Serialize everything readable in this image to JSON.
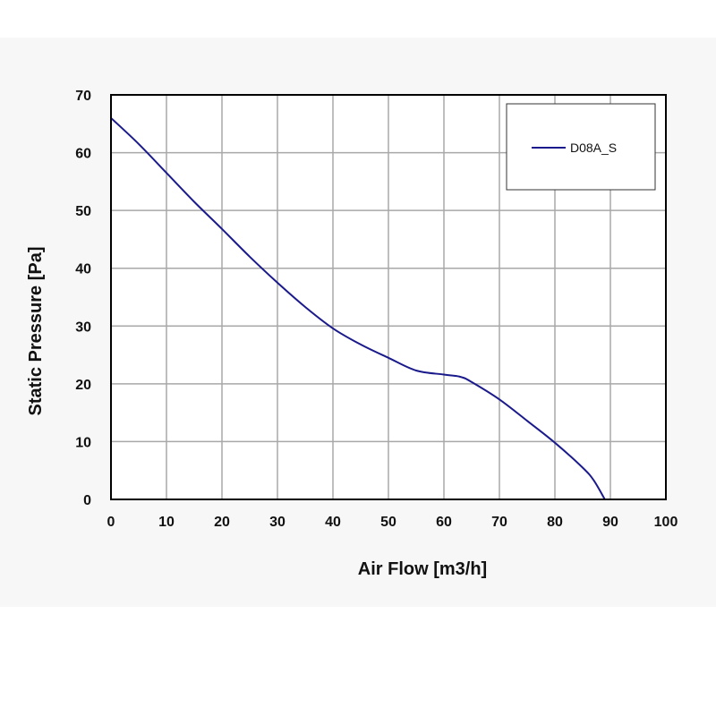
{
  "chart_data": {
    "type": "line",
    "title": "",
    "xlabel": "Air Flow [m3/h]",
    "ylabel": "Static Pressure [Pa]",
    "xlim": [
      0,
      100
    ],
    "ylim": [
      0,
      70
    ],
    "xticks": [
      0,
      10,
      20,
      30,
      40,
      50,
      60,
      70,
      80,
      90,
      100
    ],
    "yticks": [
      0,
      10,
      20,
      30,
      40,
      50,
      60,
      70
    ],
    "grid": true,
    "legend_position": "top-right",
    "series": [
      {
        "name": "D08A_S",
        "color": "#1a1a8c",
        "x": [
          0,
          5,
          10,
          15,
          20,
          25,
          30,
          35,
          40,
          45,
          50,
          55,
          60,
          63,
          65,
          70,
          75,
          80,
          85,
          87,
          89
        ],
        "y": [
          66,
          61.5,
          56.5,
          51.5,
          46.8,
          42,
          37.5,
          33.3,
          29.6,
          26.8,
          24.5,
          22.3,
          21.6,
          21.2,
          20.3,
          17.3,
          13.6,
          9.8,
          5.5,
          3.3,
          0
        ]
      }
    ]
  }
}
